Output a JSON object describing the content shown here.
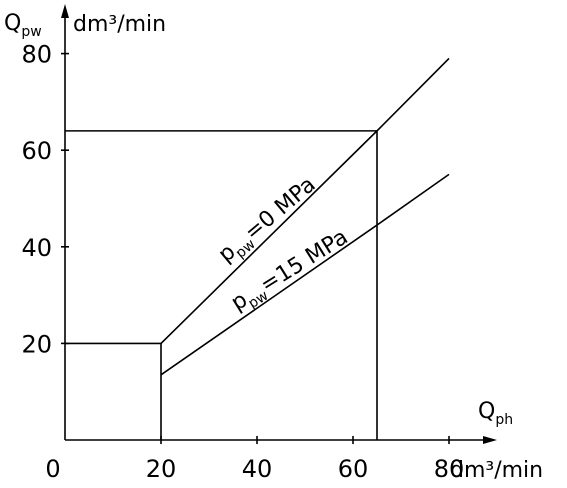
{
  "chart_data": {
    "type": "line",
    "y_label_main": "Q",
    "y_label_sub": "pw",
    "y_unit": "dm³/min",
    "x_label_main": "Q",
    "x_label_sub": "ph",
    "x_unit": "dm³/min",
    "xlim": [
      0,
      80
    ],
    "ylim": [
      0,
      80
    ],
    "x_ticks": [
      "0",
      "20",
      "40",
      "60",
      "80"
    ],
    "y_ticks": [
      "20",
      "40",
      "60",
      "80"
    ],
    "x_tick_values": [
      0,
      20,
      40,
      60,
      80
    ],
    "y_tick_values": [
      20,
      40,
      60,
      80
    ],
    "series": [
      {
        "label_main": "p",
        "label_sub": "pw",
        "label_rest": "=0  MPa",
        "x": [
          0,
          20,
          65,
          80
        ],
        "y": [
          20,
          20,
          64,
          79
        ]
      },
      {
        "label_main": "p",
        "label_sub": "pw",
        "label_rest": "=15  MPa",
        "x": [
          20,
          65,
          80
        ],
        "y": [
          13.5,
          44.5,
          55
        ]
      }
    ],
    "reference_lines": [
      {
        "points": [
          [
            0,
            64
          ],
          [
            65,
            64
          ],
          [
            65,
            0
          ]
        ]
      },
      {
        "points": [
          [
            20,
            20
          ],
          [
            20,
            0
          ]
        ]
      }
    ]
  }
}
